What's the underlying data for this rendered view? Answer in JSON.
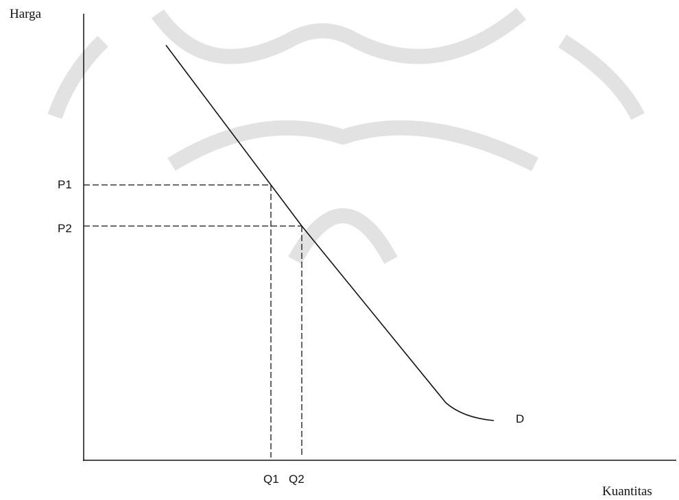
{
  "axes": {
    "y_label": "Harga",
    "x_label": "Kuantitas"
  },
  "price_levels": [
    "P1",
    "P2"
  ],
  "quantity_levels": [
    "Q1",
    "Q2"
  ],
  "curve_label": "D"
}
